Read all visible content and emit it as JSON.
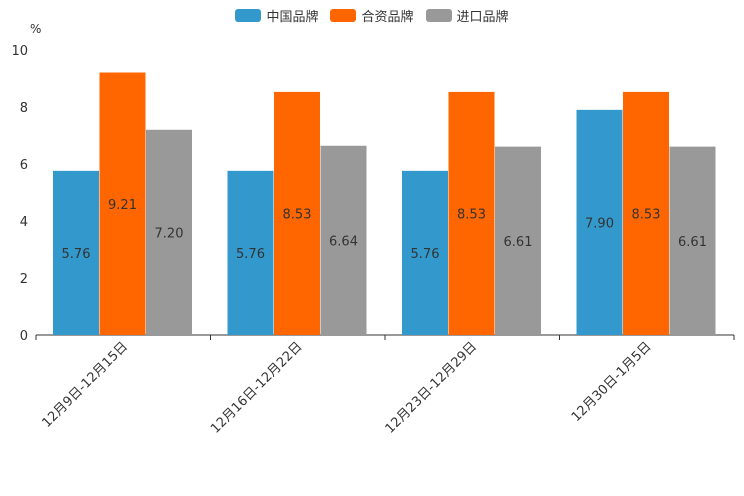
{
  "chart_data": {
    "type": "bar",
    "ylabel": "%",
    "ylim": [
      0,
      10
    ],
    "yticks": [
      "0",
      "2",
      "4",
      "6",
      "8",
      "10"
    ],
    "categories": [
      "12月9日-12月15日",
      "12月16日-12月22日",
      "12月23日-12月29日",
      "12月30日-1月5日"
    ],
    "series": [
      {
        "name": "中国品牌",
        "color": "#3399CC",
        "values": [
          5.76,
          5.76,
          5.76,
          7.9
        ],
        "labels": [
          "5.76",
          "5.76",
          "5.76",
          "7.90"
        ]
      },
      {
        "name": "合资品牌",
        "color": "#FF6600",
        "values": [
          9.21,
          8.53,
          8.53,
          8.53
        ],
        "labels": [
          "9.21",
          "8.53",
          "8.53",
          "8.53"
        ]
      },
      {
        "name": "进口品牌",
        "color": "#999999",
        "values": [
          7.2,
          6.64,
          6.61,
          6.61
        ],
        "labels": [
          "7.20",
          "6.64",
          "6.61",
          "6.61"
        ]
      }
    ],
    "legend_position": "top-center"
  }
}
